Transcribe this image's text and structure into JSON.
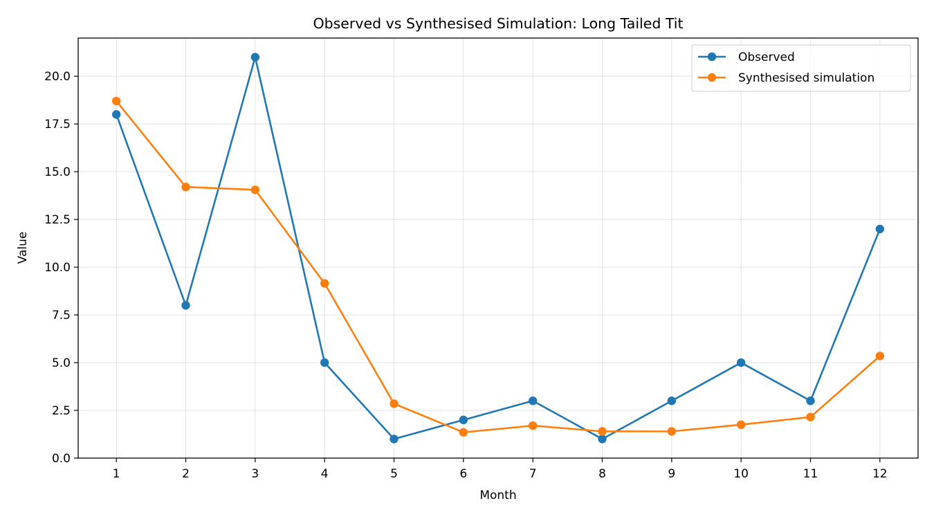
{
  "chart_data": {
    "type": "line",
    "title": "Observed vs Synthesised Simulation: Long Tailed Tit",
    "xlabel": "Month",
    "ylabel": "Value",
    "x": [
      1,
      2,
      3,
      4,
      5,
      6,
      7,
      8,
      9,
      10,
      11,
      12
    ],
    "xticks": [
      "1",
      "2",
      "3",
      "4",
      "5",
      "6",
      "7",
      "8",
      "9",
      "10",
      "11",
      "12"
    ],
    "ylim": [
      0,
      22
    ],
    "yticks": [
      "0.0",
      "2.5",
      "5.0",
      "7.5",
      "10.0",
      "12.5",
      "15.0",
      "17.5",
      "20.0"
    ],
    "grid": true,
    "legend_position": "top-right",
    "series": [
      {
        "name": "Observed",
        "color": "#1f77b4",
        "marker": "circle",
        "values": [
          18,
          8,
          21,
          5,
          1,
          2,
          3,
          1,
          3,
          5,
          3,
          12
        ]
      },
      {
        "name": "Synthesised simulation",
        "color": "#ff7f0e",
        "marker": "circle",
        "values": [
          18.7,
          14.2,
          14.05,
          9.15,
          2.85,
          1.35,
          1.7,
          1.4,
          1.4,
          1.75,
          2.15,
          5.35
        ]
      }
    ]
  }
}
